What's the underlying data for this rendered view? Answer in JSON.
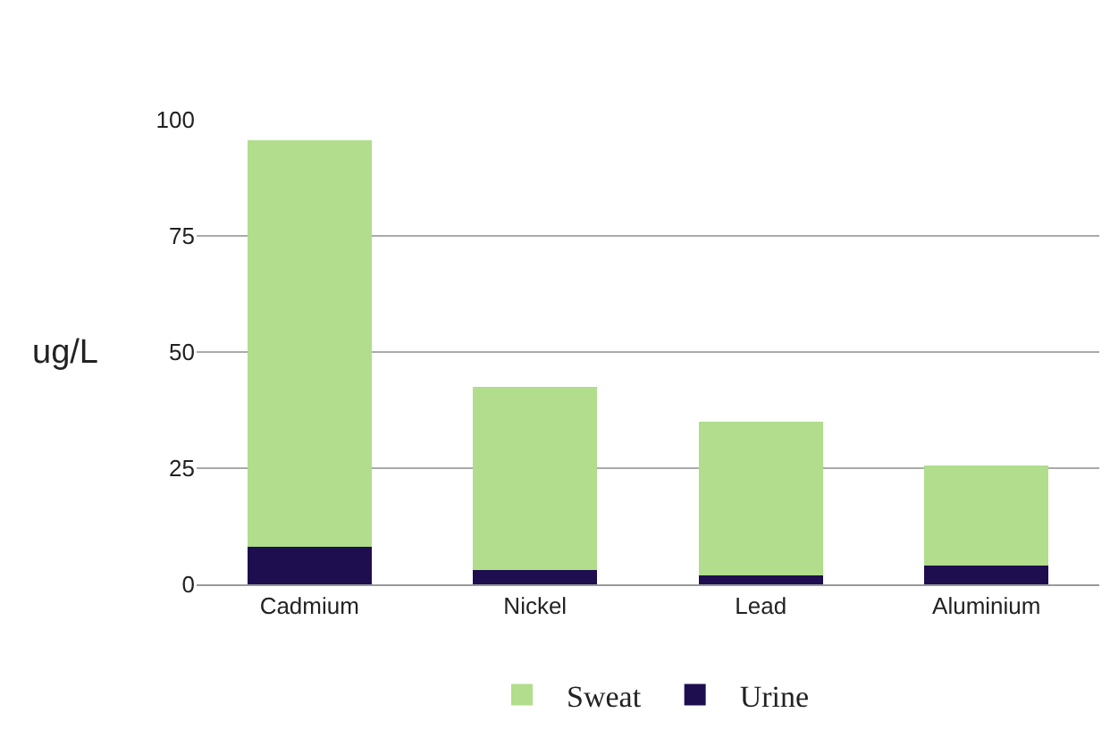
{
  "chart_data": {
    "type": "bar",
    "stacked": true,
    "ylabel": "ug/L",
    "categories": [
      "Cadmium",
      "Nickel",
      "Lead",
      "Aluminium"
    ],
    "series": [
      {
        "name": "Urine",
        "color": "#1f0e4f",
        "values": [
          8,
          3,
          2,
          4
        ]
      },
      {
        "name": "Sweat",
        "color": "#b1dd8c",
        "values": [
          87.5,
          39.5,
          33,
          21.5
        ]
      }
    ],
    "ylim": [
      0,
      100
    ],
    "yticks": [
      0,
      25,
      50,
      75,
      100
    ],
    "grid": "y",
    "legend": "bottom"
  }
}
